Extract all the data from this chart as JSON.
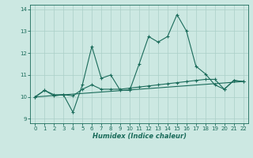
{
  "xlabel": "Humidex (Indice chaleur)",
  "xlim": [
    -0.5,
    22.5
  ],
  "ylim": [
    8.8,
    14.2
  ],
  "yticks": [
    9,
    10,
    11,
    12,
    13,
    14
  ],
  "xticks": [
    0,
    1,
    2,
    3,
    4,
    5,
    6,
    7,
    8,
    9,
    10,
    11,
    12,
    13,
    14,
    15,
    16,
    17,
    18,
    19,
    20,
    21,
    22
  ],
  "bg_color": "#cce8e2",
  "grid_color": "#aacfc8",
  "line_color": "#1a6b5a",
  "line1_x": [
    0,
    1,
    2,
    3,
    4,
    5,
    6,
    7,
    8,
    9,
    10,
    11,
    12,
    13,
    14,
    15,
    16,
    17,
    18,
    19,
    20,
    21,
    22
  ],
  "line1_y": [
    10.0,
    10.3,
    10.05,
    10.1,
    9.3,
    10.55,
    12.3,
    10.85,
    11.0,
    10.3,
    10.3,
    11.5,
    12.75,
    12.5,
    12.75,
    13.75,
    13.0,
    11.4,
    11.05,
    10.55,
    10.35,
    10.75,
    10.7
  ],
  "line2_x": [
    0,
    1,
    2,
    3,
    4,
    5,
    6,
    7,
    8,
    9,
    10,
    11,
    12,
    13,
    14,
    15,
    16,
    17,
    18,
    19,
    20,
    21,
    22
  ],
  "line2_y": [
    10.0,
    10.3,
    10.1,
    10.1,
    10.05,
    10.35,
    10.55,
    10.35,
    10.35,
    10.35,
    10.4,
    10.45,
    10.5,
    10.55,
    10.6,
    10.65,
    10.7,
    10.75,
    10.8,
    10.8,
    10.35,
    10.75,
    10.7
  ],
  "line3_x": [
    0,
    22
  ],
  "line3_y": [
    10.0,
    10.7
  ]
}
